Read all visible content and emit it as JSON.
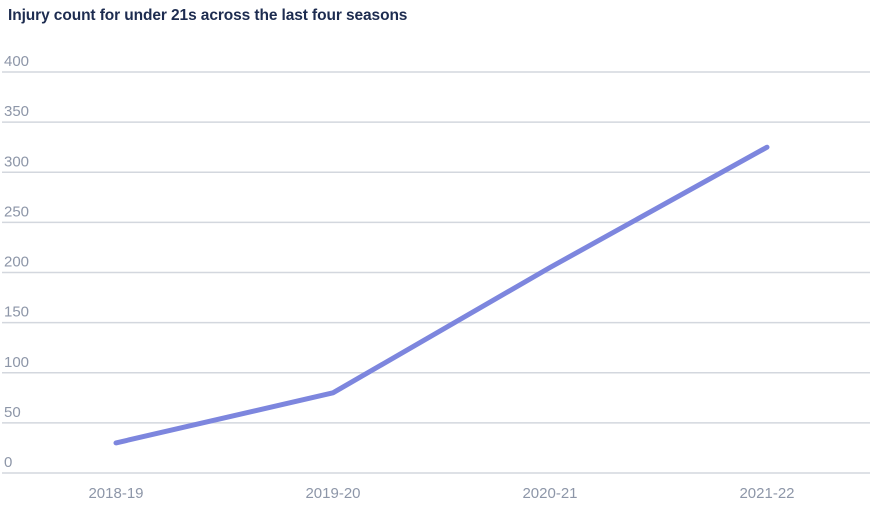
{
  "chart_data": {
    "type": "line",
    "title": "Injury count for under 21s across the last four seasons",
    "categories": [
      "2018-19",
      "2019-20",
      "2020-21",
      "2021-22"
    ],
    "series": [
      {
        "name": "Injury count",
        "values": [
          30,
          80,
          205,
          325
        ]
      }
    ],
    "xlabel": "",
    "ylabel": "",
    "ylim": [
      0,
      400
    ],
    "ytick_step": 50,
    "grid": true,
    "legend": false,
    "markers": false,
    "colors": {
      "line": "#7d86de",
      "gridline": "#d3d7de",
      "tick_label": "#8d96a8",
      "title": "#1d2c50",
      "background": "#ffffff"
    }
  }
}
